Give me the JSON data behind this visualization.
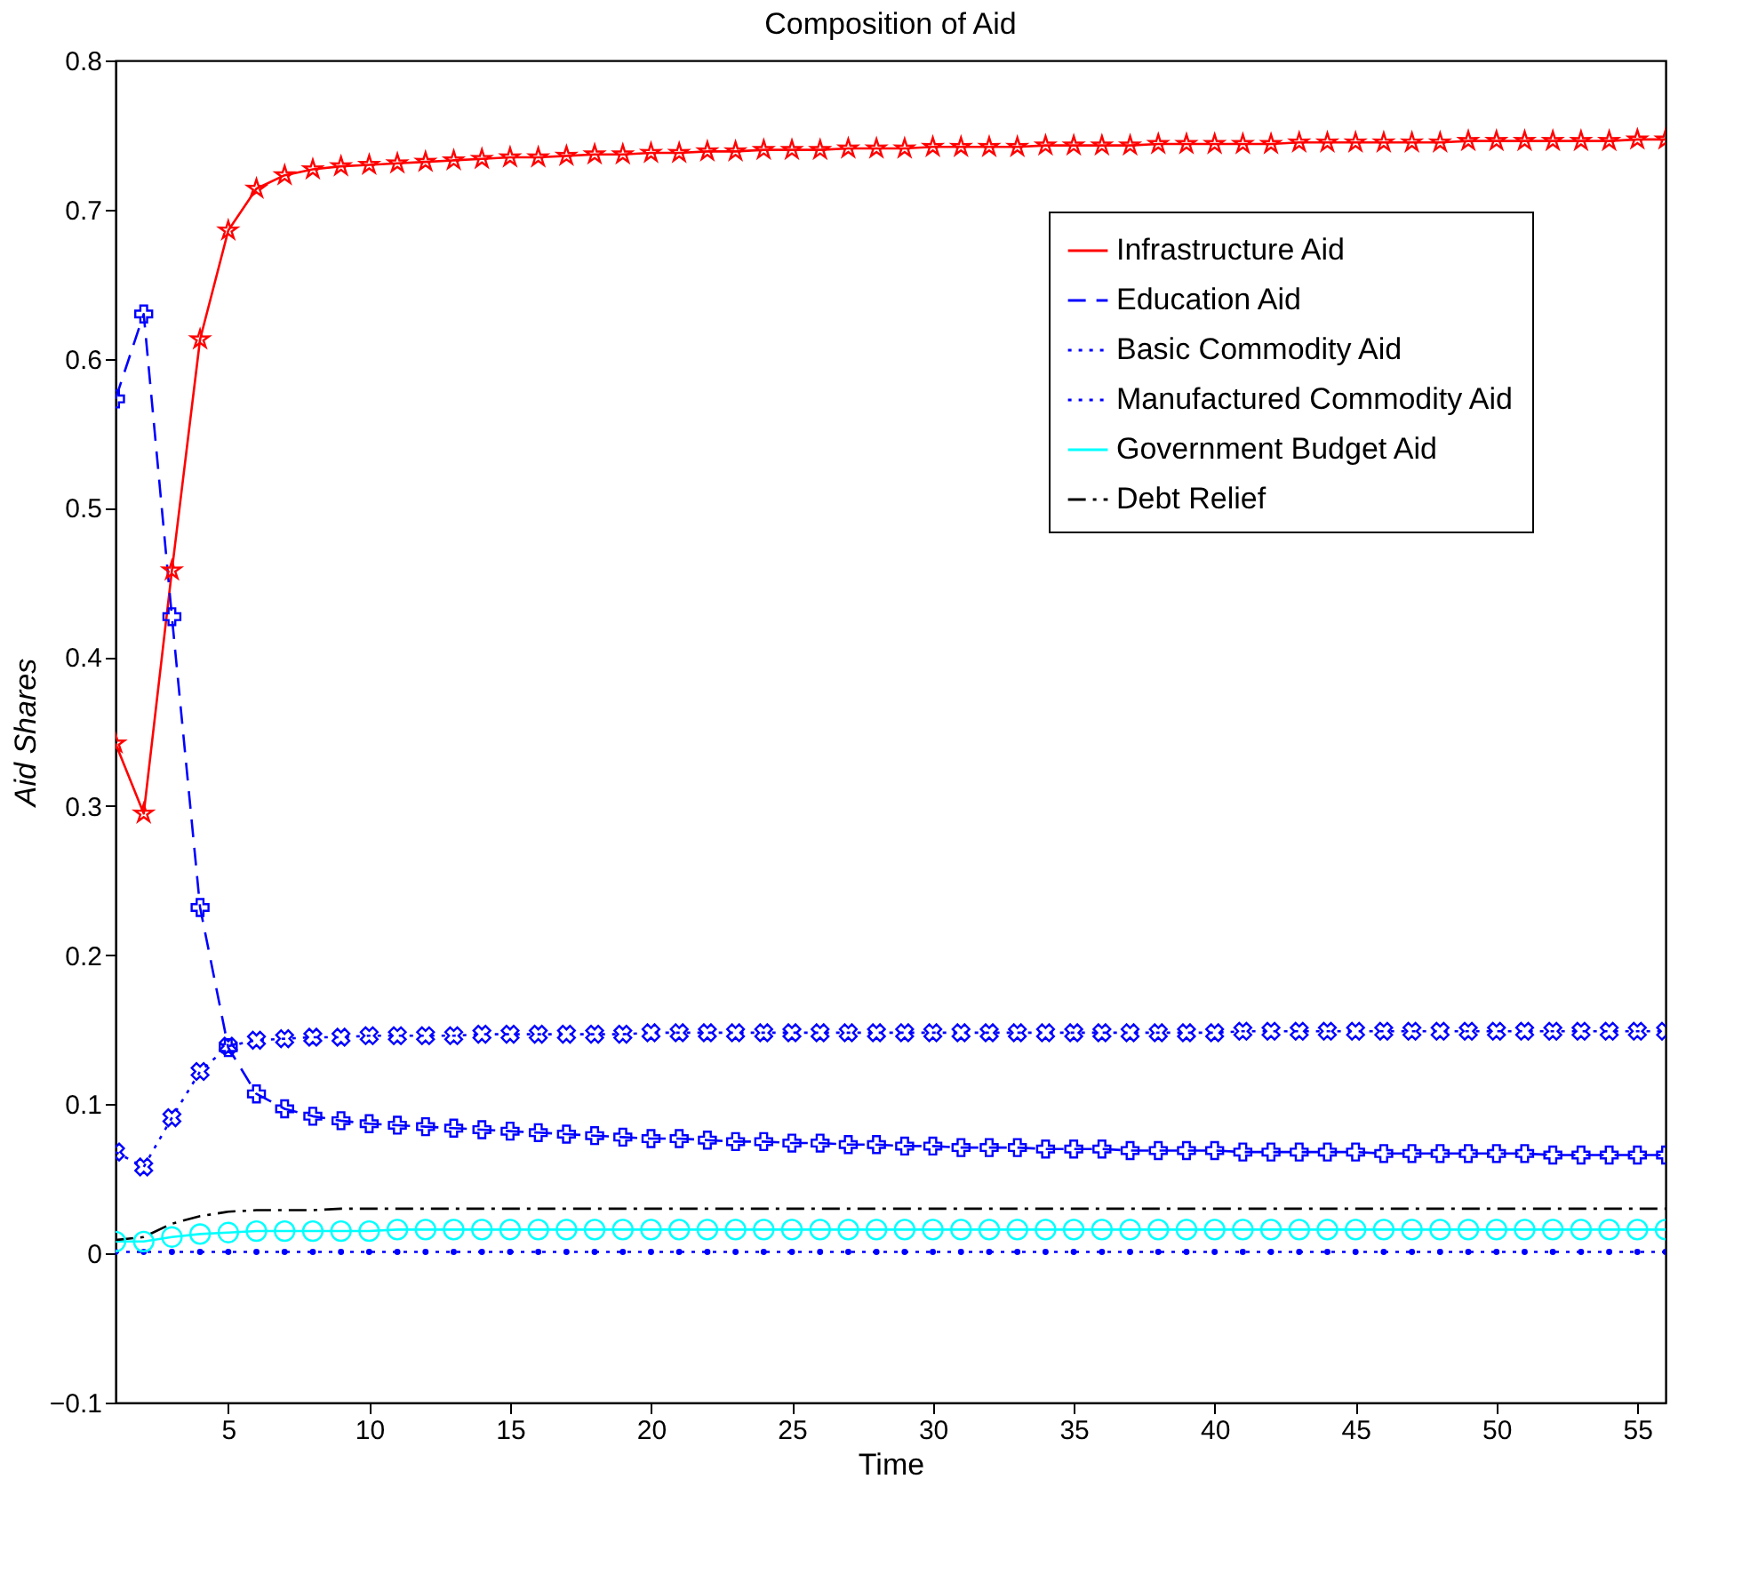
{
  "chart_data": {
    "type": "line",
    "title": "Composition of Aid",
    "xlabel": "Time",
    "ylabel": "Aid Shares",
    "x": [
      1,
      2,
      3,
      4,
      5,
      6,
      7,
      8,
      9,
      10,
      11,
      12,
      13,
      14,
      15,
      16,
      17,
      18,
      19,
      20,
      21,
      22,
      23,
      24,
      25,
      26,
      27,
      28,
      29,
      30,
      31,
      32,
      33,
      34,
      35,
      36,
      37,
      38,
      39,
      40,
      41,
      42,
      43,
      44,
      45,
      46,
      47,
      48,
      49,
      50,
      51,
      52,
      53,
      54,
      55,
      56
    ],
    "xlim": [
      1,
      56
    ],
    "xticks": [
      5,
      10,
      15,
      20,
      25,
      30,
      35,
      40,
      45,
      50,
      55
    ],
    "ylim": [
      -0.1,
      0.8
    ],
    "yticks": [
      -0.1,
      0,
      0.1,
      0.2,
      0.3,
      0.4,
      0.5,
      0.6,
      0.7,
      0.8
    ],
    "grid": false,
    "legend": "top right",
    "series": [
      {
        "name": "Infrastructure Aid",
        "color": "#ff0000",
        "marker": "star",
        "line_style": "solid",
        "values": [
          0.342,
          0.295,
          0.458,
          0.613,
          0.686,
          0.714,
          0.723,
          0.727,
          0.729,
          0.73,
          0.731,
          0.732,
          0.733,
          0.734,
          0.735,
          0.735,
          0.736,
          0.737,
          0.737,
          0.738,
          0.738,
          0.739,
          0.739,
          0.74,
          0.74,
          0.74,
          0.741,
          0.741,
          0.741,
          0.742,
          0.742,
          0.742,
          0.742,
          0.743,
          0.743,
          0.743,
          0.743,
          0.744,
          0.744,
          0.744,
          0.744,
          0.744,
          0.745,
          0.745,
          0.745,
          0.745,
          0.745,
          0.745,
          0.746,
          0.746,
          0.746,
          0.746,
          0.746,
          0.746,
          0.747,
          0.747
        ]
      },
      {
        "name": "Education Aid",
        "color": "#0000ff",
        "marker": "cross",
        "line_style": "dashed",
        "values": [
          0.573,
          0.63,
          0.427,
          0.232,
          0.138,
          0.107,
          0.097,
          0.092,
          0.089,
          0.087,
          0.086,
          0.085,
          0.084,
          0.083,
          0.082,
          0.081,
          0.08,
          0.079,
          0.078,
          0.077,
          0.077,
          0.076,
          0.075,
          0.075,
          0.074,
          0.074,
          0.073,
          0.073,
          0.072,
          0.072,
          0.071,
          0.071,
          0.071,
          0.07,
          0.07,
          0.07,
          0.069,
          0.069,
          0.069,
          0.069,
          0.068,
          0.068,
          0.068,
          0.068,
          0.068,
          0.067,
          0.067,
          0.067,
          0.067,
          0.067,
          0.067,
          0.066,
          0.066,
          0.066,
          0.066,
          0.066
        ]
      },
      {
        "name": "Basic Commodity Aid",
        "color": "#0000ff",
        "marker": "circle",
        "line_style": "dotted",
        "values": [
          0.001,
          0.001,
          0.001,
          0.001,
          0.001,
          0.001,
          0.001,
          0.001,
          0.001,
          0.001,
          0.001,
          0.001,
          0.001,
          0.001,
          0.001,
          0.001,
          0.001,
          0.001,
          0.001,
          0.001,
          0.001,
          0.001,
          0.001,
          0.001,
          0.001,
          0.001,
          0.001,
          0.001,
          0.001,
          0.001,
          0.001,
          0.001,
          0.001,
          0.001,
          0.001,
          0.001,
          0.001,
          0.001,
          0.001,
          0.001,
          0.001,
          0.001,
          0.001,
          0.001,
          0.001,
          0.001,
          0.001,
          0.001,
          0.001,
          0.001,
          0.001,
          0.001,
          0.001,
          0.001,
          0.001,
          0.001
        ]
      },
      {
        "name": "Manufactured Commodity Aid",
        "color": "#0000ff",
        "marker": "x",
        "line_style": "dotted",
        "values": [
          0.068,
          0.058,
          0.091,
          0.122,
          0.139,
          0.143,
          0.144,
          0.145,
          0.145,
          0.146,
          0.146,
          0.146,
          0.146,
          0.147,
          0.147,
          0.147,
          0.147,
          0.147,
          0.147,
          0.148,
          0.148,
          0.148,
          0.148,
          0.148,
          0.148,
          0.148,
          0.148,
          0.148,
          0.148,
          0.148,
          0.148,
          0.148,
          0.148,
          0.148,
          0.148,
          0.148,
          0.148,
          0.148,
          0.148,
          0.148,
          0.149,
          0.149,
          0.149,
          0.149,
          0.149,
          0.149,
          0.149,
          0.149,
          0.149,
          0.149,
          0.149,
          0.149,
          0.149,
          0.149,
          0.149,
          0.149
        ]
      },
      {
        "name": "Government Budget Aid",
        "color": "#00ffff",
        "marker": "hollow circle",
        "line_style": "solid",
        "values": [
          0.008,
          0.008,
          0.011,
          0.013,
          0.014,
          0.015,
          0.015,
          0.015,
          0.015,
          0.015,
          0.016,
          0.016,
          0.016,
          0.016,
          0.016,
          0.016,
          0.016,
          0.016,
          0.016,
          0.016,
          0.016,
          0.016,
          0.016,
          0.016,
          0.016,
          0.016,
          0.016,
          0.016,
          0.016,
          0.016,
          0.016,
          0.016,
          0.016,
          0.016,
          0.016,
          0.016,
          0.016,
          0.016,
          0.016,
          0.016,
          0.016,
          0.016,
          0.016,
          0.016,
          0.016,
          0.016,
          0.016,
          0.016,
          0.016,
          0.016,
          0.016,
          0.016,
          0.016,
          0.016,
          0.016,
          0.016
        ]
      },
      {
        "name": "Debt Relief",
        "color": "#000000",
        "marker": "none",
        "line_style": "dashdot",
        "values": [
          0.009,
          0.011,
          0.02,
          0.025,
          0.028,
          0.029,
          0.029,
          0.029,
          0.03,
          0.03,
          0.03,
          0.03,
          0.03,
          0.03,
          0.03,
          0.03,
          0.03,
          0.03,
          0.03,
          0.03,
          0.03,
          0.03,
          0.03,
          0.03,
          0.03,
          0.03,
          0.03,
          0.03,
          0.03,
          0.03,
          0.03,
          0.03,
          0.03,
          0.03,
          0.03,
          0.03,
          0.03,
          0.03,
          0.03,
          0.03,
          0.03,
          0.03,
          0.03,
          0.03,
          0.03,
          0.03,
          0.03,
          0.03,
          0.03,
          0.03,
          0.03,
          0.03,
          0.03,
          0.03,
          0.03,
          0.03
        ]
      }
    ]
  }
}
